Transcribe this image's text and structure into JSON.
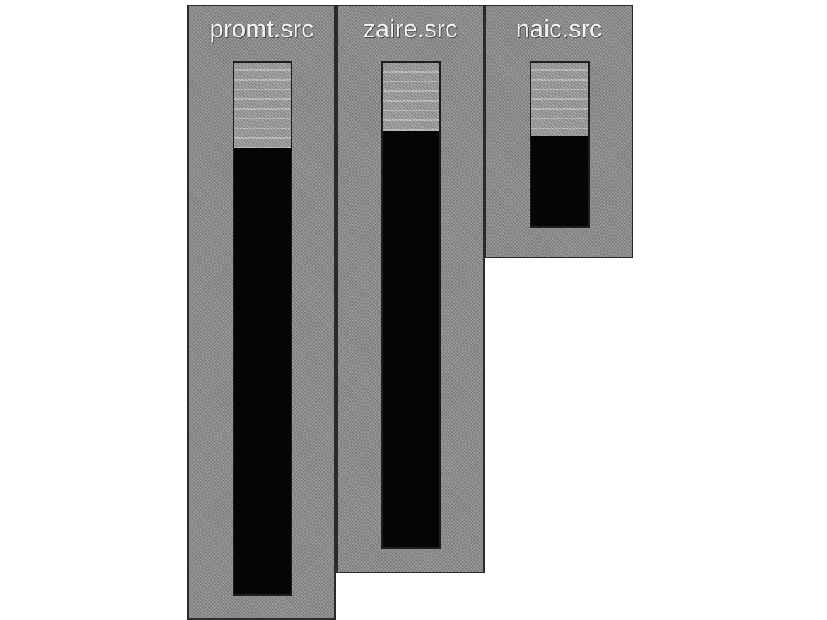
{
  "columns": [
    {
      "id": "promt",
      "label": "promt.src",
      "level": 0.84
    },
    {
      "id": "zaire",
      "label": "zaire.src",
      "level": 0.86
    },
    {
      "id": "naic",
      "label": "naic.src",
      "level": 0.55
    }
  ]
}
